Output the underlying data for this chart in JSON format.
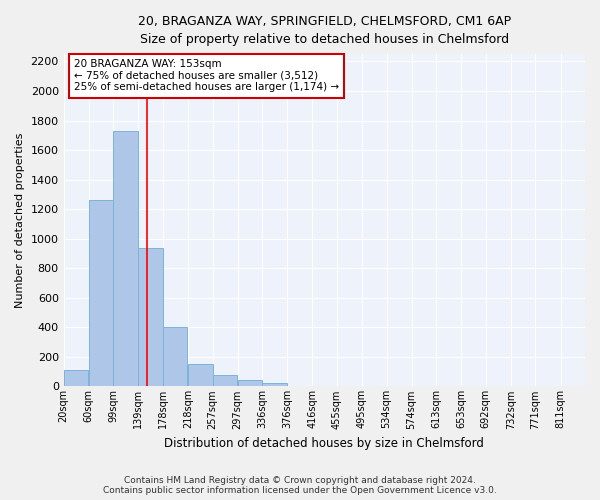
{
  "title_line1": "20, BRAGANZA WAY, SPRINGFIELD, CHELMSFORD, CM1 6AP",
  "title_line2": "Size of property relative to detached houses in Chelmsford",
  "xlabel": "Distribution of detached houses by size in Chelmsford",
  "ylabel": "Number of detached properties",
  "bin_labels": [
    "20sqm",
    "60sqm",
    "99sqm",
    "139sqm",
    "178sqm",
    "218sqm",
    "257sqm",
    "297sqm",
    "336sqm",
    "376sqm",
    "416sqm",
    "455sqm",
    "495sqm",
    "534sqm",
    "574sqm",
    "613sqm",
    "653sqm",
    "692sqm",
    "732sqm",
    "771sqm",
    "811sqm"
  ],
  "bar_values": [
    110,
    1260,
    1730,
    940,
    405,
    150,
    75,
    42,
    22,
    0,
    0,
    0,
    0,
    0,
    0,
    0,
    0,
    0,
    0,
    0
  ],
  "bar_color": "#aec6e8",
  "bar_edge_color": "#7ab4d8",
  "background_color": "#eef3fb",
  "grid_color": "#ffffff",
  "annotation_text_line1": "20 BRAGANZA WAY: 153sqm",
  "annotation_text_line2": "← 75% of detached houses are smaller (3,512)",
  "annotation_text_line3": "25% of semi-detached houses are larger (1,174) →",
  "annotation_box_color": "#ffffff",
  "annotation_box_edge": "#cc0000",
  "red_line_x": 153,
  "ylim": [
    0,
    2250
  ],
  "yticks": [
    0,
    200,
    400,
    600,
    800,
    1000,
    1200,
    1400,
    1600,
    1800,
    2000,
    2200
  ],
  "footnote_line1": "Contains HM Land Registry data © Crown copyright and database right 2024.",
  "footnote_line2": "Contains public sector information licensed under the Open Government Licence v3.0.",
  "bin_starts": [
    20,
    60,
    99,
    139,
    178,
    218,
    257,
    297,
    336,
    376,
    416,
    455,
    495,
    534,
    574,
    613,
    653,
    692,
    732,
    771
  ],
  "bin_width": 39,
  "xlim_min": 20,
  "xlim_max": 850
}
